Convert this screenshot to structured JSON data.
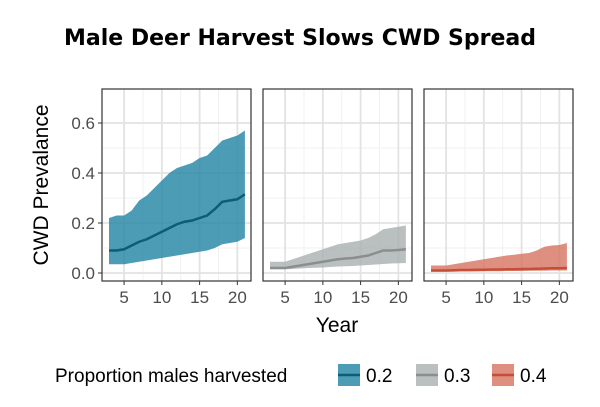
{
  "chart_data": {
    "type": "area",
    "title": "Male Deer Harvest Slows CWD Spread",
    "xlabel": "Year",
    "ylabel": "CWD Prevalance",
    "xlim": [
      3,
      21
    ],
    "ylim": [
      0,
      0.7
    ],
    "x_ticks": [
      "5",
      "10",
      "15",
      "20"
    ],
    "y_ticks": [
      "0.0",
      "0.2",
      "0.4",
      "0.6"
    ],
    "grid": true,
    "legend": {
      "title": "Proportion males harvested",
      "placement": "bottom"
    },
    "x": [
      3,
      4,
      5,
      6,
      7,
      8,
      9,
      10,
      11,
      12,
      13,
      14,
      15,
      16,
      17,
      18,
      19,
      20,
      21
    ],
    "series": [
      {
        "name": "0.2",
        "fill": "#2183a4",
        "line": "#0d5c78",
        "mean": [
          0.09,
          0.09,
          0.095,
          0.11,
          0.125,
          0.135,
          0.15,
          0.165,
          0.18,
          0.195,
          0.205,
          0.21,
          0.22,
          0.23,
          0.255,
          0.285,
          0.29,
          0.295,
          0.315
        ],
        "upper": [
          0.22,
          0.23,
          0.23,
          0.25,
          0.29,
          0.31,
          0.34,
          0.37,
          0.4,
          0.42,
          0.43,
          0.44,
          0.46,
          0.47,
          0.5,
          0.53,
          0.54,
          0.55,
          0.57
        ],
        "lower": [
          0.035,
          0.035,
          0.035,
          0.04,
          0.045,
          0.05,
          0.055,
          0.06,
          0.065,
          0.07,
          0.075,
          0.08,
          0.085,
          0.09,
          0.1,
          0.115,
          0.12,
          0.125,
          0.14
        ]
      },
      {
        "name": "0.3",
        "fill": "#a9afaf",
        "line": "#8a8e8e",
        "mean": [
          0.02,
          0.02,
          0.02,
          0.025,
          0.03,
          0.035,
          0.04,
          0.045,
          0.05,
          0.055,
          0.058,
          0.06,
          0.065,
          0.07,
          0.08,
          0.09,
          0.09,
          0.092,
          0.095
        ],
        "upper": [
          0.045,
          0.045,
          0.045,
          0.055,
          0.065,
          0.075,
          0.085,
          0.095,
          0.105,
          0.115,
          0.12,
          0.125,
          0.13,
          0.14,
          0.155,
          0.175,
          0.18,
          0.185,
          0.19
        ],
        "lower": [
          0.015,
          0.015,
          0.015,
          0.016,
          0.018,
          0.02,
          0.021,
          0.022,
          0.024,
          0.026,
          0.027,
          0.028,
          0.03,
          0.032,
          0.034,
          0.036,
          0.038,
          0.039,
          0.04
        ]
      },
      {
        "name": "0.4",
        "fill": "#d6735f",
        "line": "#c64e37",
        "mean": [
          0.01,
          0.01,
          0.01,
          0.011,
          0.012,
          0.012,
          0.013,
          0.013,
          0.014,
          0.014,
          0.015,
          0.015,
          0.016,
          0.016,
          0.017,
          0.018,
          0.019,
          0.019,
          0.02
        ],
        "upper": [
          0.03,
          0.03,
          0.03,
          0.035,
          0.04,
          0.045,
          0.05,
          0.055,
          0.06,
          0.065,
          0.07,
          0.073,
          0.077,
          0.08,
          0.09,
          0.105,
          0.11,
          0.112,
          0.12
        ],
        "lower": [
          0.005,
          0.005,
          0.005,
          0.005,
          0.006,
          0.006,
          0.006,
          0.007,
          0.007,
          0.007,
          0.008,
          0.008,
          0.008,
          0.009,
          0.009,
          0.009,
          0.01,
          0.01,
          0.01
        ]
      }
    ]
  }
}
